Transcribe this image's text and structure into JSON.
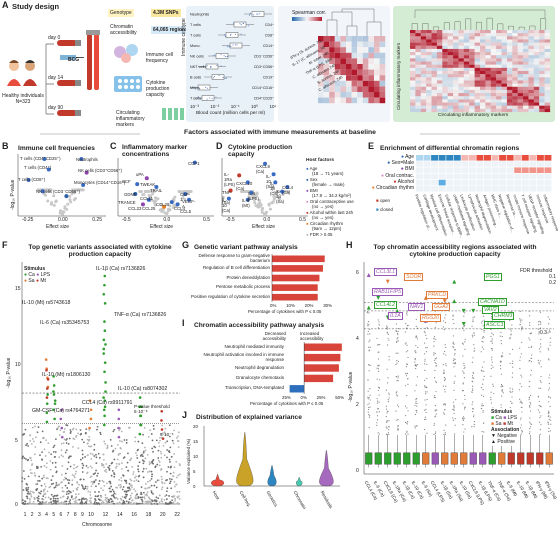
{
  "panel_a": {
    "label": "A",
    "title": "Study design",
    "cohort": "Healthy individuals N=323",
    "bcg": "BCG",
    "days": [
      "day 0",
      "day 14",
      "day 90"
    ],
    "measures": [
      {
        "label": "Genotype",
        "value": "4.3M SNPs"
      },
      {
        "label": "Chromatin accessibility",
        "value": "64,065 regions"
      },
      {
        "label": "Immune cell frequency",
        "value": ""
      },
      {
        "label": "Cytokine production capacity",
        "value": ""
      },
      {
        "label": "Circulating inflammatory markers",
        "value": ""
      }
    ],
    "box_plot": {
      "ylabel": "Immune cell type",
      "xlabel": "Blood count (million cells per ml)",
      "ticks": [
        "10⁻³",
        "10⁻²",
        "10⁻¹",
        "10⁰",
        "10¹"
      ],
      "rows": [
        {
          "name": "Neutrophils",
          "marker": ""
        },
        {
          "name": "T cells",
          "marker": "CD4⁺"
        },
        {
          "name": "T cells",
          "marker": "CD8⁺"
        },
        {
          "name": "Mono.",
          "marker": "CD14⁺"
        },
        {
          "name": "NK cells",
          "marker": "CD3⁻CD56⁺"
        },
        {
          "name": "NKT cells",
          "marker": "CD3⁺CD56⁺"
        },
        {
          "name": "B cells",
          "marker": "CD19⁺"
        },
        {
          "name": "Mono.",
          "marker": "CD14⁺CD16⁺"
        },
        {
          "name": "T cells",
          "marker": "CD4⁺CD25⁺"
        }
      ]
    },
    "heatmap": {
      "legend_title": "Spearman corr.",
      "legend_ticks": [
        "-1",
        "0",
        "1"
      ],
      "row_labels": [
        "IFN-γ (S. aureus, 7d)",
        "IL-17 (C. albicans, 7d)",
        "M. tuber. 24h",
        "TNF-α (LPS, 24h)",
        "C. albicans 24h",
        "S. aureus, 24h",
        "C. albicans, 24h"
      ],
      "side_label": "Circulating inflammatory markers",
      "bottom_label": "Circulating inflammatory markers"
    }
  },
  "section_title": "Factors associated with immune measurements at baseline",
  "panel_b": {
    "label": "B",
    "title": "Immune cell frequencies",
    "xlabel": "Effect size",
    "ylabel": "-log₁₀ P-value",
    "xticks": [
      "-0.25",
      "0.00",
      "0.25"
    ],
    "annotations": [
      "T cells (CD4⁺CD25⁺)",
      "T cells (CD4⁺)",
      "T cells (CD8⁺)",
      "NK cells (CD3⁻CD56⁺)",
      "Neutrophils",
      "NK cells (CD3⁺CD56⁺)",
      "Monocytes (CD14⁺CD16⁺)"
    ]
  },
  "panel_c": {
    "label": "C",
    "title": "Inflammatory marker concentrations",
    "xlabel": "Effect size",
    "xticks": [
      "-0.5",
      "0.0",
      "0.5"
    ],
    "annotations": [
      "uPA",
      "SCF",
      "TWEAK",
      "TRAIL",
      "GDNF",
      "TRANCE",
      "CCL11",
      "CSF-1",
      "CCL23",
      "CCL25",
      "VEGF-A",
      "CCL28",
      "CCL4",
      "CCL5",
      "CCP1"
    ]
  },
  "panel_d": {
    "label": "D",
    "title": "Cytokine production capacity",
    "xlabel": "Effect size",
    "xticks": [
      "-0.5",
      "0.0",
      "0.5"
    ],
    "annotations": [
      "CXCL9 (Ca)",
      "IL-1Ra (LPS)",
      "IL-10 (Sa)",
      "CXCL10 (Ca)",
      "IL-1β (Ca)",
      "TNF-α (Sa)",
      "IL-10 (Ca)",
      "IL-6 (Mt)",
      "IL-6 (LPS)",
      "IL-1β (Sa)",
      "CCL4 (Ca)"
    ],
    "legend_title": "Host factors",
    "legend": [
      {
        "label": "Age",
        "note": "(18 → 71 years)",
        "color": "#3a6bc4"
      },
      {
        "label": "Sex",
        "note": "(female → male)",
        "color": "#2c5fa8"
      },
      {
        "label": "BMI",
        "note": "(17.8 → 34.2 kg/m²)",
        "color": "#8e44ad"
      },
      {
        "label": "Oral contraceptive use",
        "note": "(no → yes)",
        "color": "#d98ccd"
      },
      {
        "label": "Alcohol within last 24h",
        "note": "(no → yes)",
        "color": "#c0392b"
      },
      {
        "label": "Circadian rhythm",
        "note": "(9am → 12pm)",
        "color": "#e67e22"
      },
      {
        "label": "FDR > 0.05",
        "note": "",
        "color": "#bbbbbb"
      }
    ]
  },
  "panel_e": {
    "label": "E",
    "title": "Enrichment of differential chromatin regions",
    "rows": [
      "Age",
      "Sex=Male",
      "BMI",
      "Oral contrac.",
      "Alcohol",
      "Circadian rhythm"
    ],
    "row_colors": [
      "#3a6bc4",
      "#2c5fa8",
      "#8e44ad",
      "#d98ccd",
      "#c0392b",
      "#e67e22"
    ],
    "legend": [
      "open",
      "closed"
    ],
    "columns": [
      "Positive regulation of...",
      "Cartilage development",
      "Myeloid cell differentiation",
      "Enzyme linked receptor...",
      "Cellular response to BMP...",
      "cAMP-mediated signaling",
      "Leukocyte proliferation",
      "Lymphocyte activation",
      "Neutrophil degranulation",
      "Antigen processing...",
      "MHC class II...",
      "Negative regulation of...",
      "Response to...",
      "Innate immune response",
      "T cell receptor signaling",
      "VEGF receptor signaling",
      "Immune response",
      "Inflammatory response"
    ]
  },
  "panel_f": {
    "label": "F",
    "title": "Top genetic variants associated with cytokine production capacity",
    "xlabel": "Chromosome",
    "ylabel": "-log₁₀ P-value",
    "yticks": [
      "0",
      "5",
      "10",
      "15"
    ],
    "chromosomes": [
      "1",
      "2",
      "3",
      "4",
      "5",
      "6",
      "7",
      "8",
      "9",
      "10",
      "11",
      "12",
      "13",
      "14",
      "15",
      "16",
      "17",
      "18",
      "19",
      "20",
      "21",
      "22"
    ],
    "chrom_ticks": [
      "1",
      "2",
      "3",
      "4",
      "5",
      "6",
      "7",
      "8",
      "9",
      "10",
      "12",
      "14",
      "16",
      "18",
      "20",
      "22"
    ],
    "legend_title": "Stimulus",
    "legend": [
      {
        "label": "Ca",
        "color": "#2e9e2e"
      },
      {
        "label": "LPS",
        "color": "#9b59b6"
      },
      {
        "label": "Sa",
        "color": "#e07b39"
      },
      {
        "label": "Mt",
        "color": "#c0392b"
      }
    ],
    "annotations": [
      "IL-1β (Ca) rs7136826",
      "IL-10 (Mt) rs5743618",
      "IL-6 (Ca) rs35345753",
      "TNF-α (Ca) rs7136826",
      "IL-10 (Mt) rs1806130",
      "IL-10 (Ca) rs8074302",
      "CCL4 (Ca) rs9911791",
      "GM-CSF (Ca) rs4764271"
    ],
    "threshold_label": "P-value threshold",
    "thresholds": [
      "5·10⁻⁸",
      "5·10⁻⁶"
    ]
  },
  "panel_g": {
    "label": "G",
    "title": "Genetic variant pathway analysis",
    "xlabel": "Percentage of cytokines with P ≤ 0.05",
    "xticks": [
      "0%",
      "10%",
      "20%",
      "30%"
    ],
    "chart_data": {
      "type": "bar",
      "categories": [
        "Defense response to gram-negative bacterium",
        "Regulation of B cell differentiation",
        "Protein deneddylation",
        "Pentose metabolic process",
        "Positive regulation of cytokine secretion"
      ],
      "values": [
        30,
        29,
        27,
        26,
        26
      ],
      "xlim": [
        0,
        33
      ]
    }
  },
  "panel_h": {
    "label": "H",
    "title": "Top chromatin accessibility regions associated with cytokine production capacity",
    "ylabel": "-log₁₀ P-value",
    "yticks": [
      "0",
      "2",
      "4",
      "6"
    ],
    "fdr_title": "FDR threshold",
    "fdr": [
      "0.1",
      "0.2",
      "0.3"
    ],
    "genes": [
      "CCL3L1",
      "SOOR",
      "PGS1",
      "RAB11FIP5",
      "PRKCD",
      "GGA2",
      "CACNA1D",
      "CCL4L2",
      "NAV1",
      "VAV2",
      "CHRM3",
      "IL1A",
      "RGS20",
      "ASCC3"
    ],
    "legend": [
      {
        "title": "Stimulus",
        "items": [
          {
            "label": "Ca",
            "color": "#2e9e2e"
          },
          {
            "label": "LPS",
            "color": "#9b59b6"
          },
          {
            "label": "Sa",
            "color": "#e07b39"
          },
          {
            "label": "Mt",
            "color": "#c0392b"
          }
        ]
      },
      {
        "title": "Association",
        "items": [
          {
            "label": "Negative",
            "symbol": "▼"
          },
          {
            "label": "Positive",
            "symbol": "▲"
          }
        ]
      }
    ],
    "categories": [
      "CCL4 (Ca)",
      "IL-6 (Ca)",
      "CXCL9 (Ca)",
      "IL-1Ra (Ca)",
      "IL-1β (Ca)",
      "IL-10 (Ca)",
      "IL-6 (Sa)",
      "CCL4 (LPS)",
      "IL-1β (Sa)",
      "IL-1Ra (Sa)",
      "IL-10 (Sa)",
      "CXCL9 (LPS)",
      "IL-1β (LPS)",
      "TNF-α (Ca)",
      "TNF-α (Sa)",
      "IL-6 (Mt)",
      "IL-10 (Mt)",
      "IL-1β (Mt)",
      "IFN-γ (Mt)",
      "IFN-γ (Sa)"
    ]
  },
  "panel_i": {
    "label": "I",
    "title": "Chromatin accessibility pathway analysis",
    "left_header": "Decreased accessibility",
    "right_header": "Increased accessibility",
    "xlabel": "Percentage of cytokines with P ≤ 0.05",
    "xticks": [
      "25%",
      "0%",
      "25%",
      "50%"
    ],
    "chart_data": {
      "type": "bar",
      "categories": [
        "Neutrophil mediated immunity",
        "Neutrophil activation involved in immune response",
        "Neutrophil degranulation",
        "Granulocyte chemotaxis",
        "Transcription, DNA-templated"
      ],
      "series": [
        {
          "name": "Decreased accessibility",
          "values": [
            0,
            0,
            0,
            0,
            20
          ]
        },
        {
          "name": "Increased accessibility",
          "values": [
            52,
            50,
            48,
            40,
            0
          ]
        }
      ],
      "xlim": [
        -25,
        55
      ]
    }
  },
  "panel_j": {
    "label": "J",
    "title": "Distribution of explained variance",
    "ylabel": "Variance explained (%)",
    "yticks": [
      "0",
      "5",
      "10",
      "15",
      "20"
    ],
    "chart_data": {
      "type": "violin",
      "categories": [
        "Host",
        "Cell freq.",
        "Genetics",
        "Chromatin",
        "Residuals"
      ],
      "colors": [
        "#e74c3c",
        "#c9a227",
        "#2e86c1",
        "#48c9b0",
        "#a569bd"
      ],
      "ylim": [
        0,
        20
      ]
    }
  }
}
